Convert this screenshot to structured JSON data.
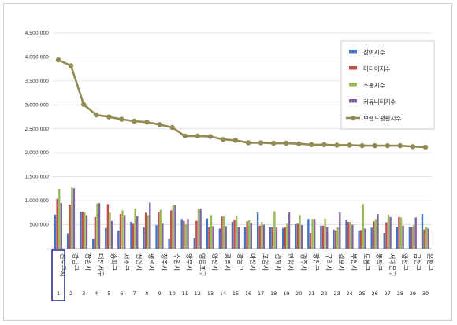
{
  "chart_data": {
    "type": "bar",
    "title": "",
    "xlabel": "",
    "ylabel": "",
    "ylim": [
      0,
      4500000
    ],
    "yticks": [
      0,
      500000,
      1000000,
      1500000,
      2000000,
      2500000,
      3000000,
      3500000,
      4000000,
      4500000
    ],
    "ytick_labels": [
      "-",
      "500,000",
      "1,000,000",
      "1,500,000",
      "2,000,000",
      "2,500,000",
      "3,000,000",
      "3,500,000",
      "4,000,000",
      "4,500,000"
    ],
    "grid": true,
    "legend_position": "top-right",
    "categories": [
      "진도구시",
      "강남구",
      "창원시",
      "대전서구",
      "송파구",
      "서초구",
      "천안시",
      "평택시",
      "청주시",
      "수원시",
      "양주시",
      "영등포구",
      "양산시",
      "광명시",
      "강동구",
      "아산시",
      "고양시",
      "김해시",
      "안양시",
      "경주시",
      "광진구",
      "구리시",
      "김포시",
      "부천시",
      "도봉구",
      "동작구",
      "서대문구",
      "양천구",
      "금천구",
      "은평구"
    ],
    "indices": [
      "1",
      "2",
      "3",
      "4",
      "5",
      "6",
      "7",
      "8",
      "9",
      "10",
      "11",
      "12",
      "13",
      "14",
      "15",
      "16",
      "17",
      "18",
      "19",
      "20",
      "21",
      "22",
      "23",
      "24",
      "25",
      "26",
      "27",
      "28",
      "29",
      "30"
    ],
    "highlighted_index": 0,
    "series": [
      {
        "name": "참여지수",
        "color": "#4472c4",
        "type": "bar",
        "values": [
          710000,
          320000,
          770000,
          200000,
          430000,
          380000,
          560000,
          440000,
          490000,
          200000,
          620000,
          230000,
          630000,
          420000,
          560000,
          450000,
          760000,
          450000,
          430000,
          510000,
          620000,
          480000,
          400000,
          600000,
          380000,
          440000,
          330000,
          460000,
          460000,
          720000
        ]
      },
      {
        "name": "미디어지수",
        "color": "#c0504d",
        "type": "bar",
        "values": [
          1040000,
          920000,
          770000,
          660000,
          930000,
          720000,
          520000,
          750000,
          760000,
          800000,
          580000,
          580000,
          450000,
          670000,
          610000,
          570000,
          480000,
          450000,
          450000,
          520000,
          330000,
          480000,
          380000,
          560000,
          390000,
          570000,
          550000,
          660000,
          460000,
          400000
        ]
      },
      {
        "name": "소통지수",
        "color": "#9bbb59",
        "type": "bar",
        "values": [
          1250000,
          1280000,
          750000,
          940000,
          760000,
          800000,
          840000,
          700000,
          810000,
          920000,
          510000,
          840000,
          700000,
          670000,
          690000,
          590000,
          560000,
          780000,
          520000,
          700000,
          620000,
          630000,
          440000,
          560000,
          930000,
          620000,
          710000,
          650000,
          490000,
          460000
        ]
      },
      {
        "name": "커뮤니티지수",
        "color": "#8064a2",
        "type": "bar",
        "values": [
          950000,
          1260000,
          700000,
          950000,
          580000,
          700000,
          680000,
          960000,
          520000,
          920000,
          620000,
          840000,
          470000,
          470000,
          450000,
          530000,
          500000,
          440000,
          760000,
          490000,
          620000,
          450000,
          760000,
          500000,
          420000,
          720000,
          660000,
          480000,
          650000,
          420000
        ]
      },
      {
        "name": "브랜드평판지수",
        "color": "#938953",
        "type": "line",
        "values": [
          3940000,
          3820000,
          3010000,
          2790000,
          2750000,
          2700000,
          2660000,
          2640000,
          2590000,
          2530000,
          2350000,
          2350000,
          2340000,
          2280000,
          2260000,
          2210000,
          2210000,
          2200000,
          2200000,
          2190000,
          2170000,
          2170000,
          2160000,
          2160000,
          2150000,
          2150000,
          2150000,
          2150000,
          2130000,
          2120000
        ]
      }
    ]
  }
}
